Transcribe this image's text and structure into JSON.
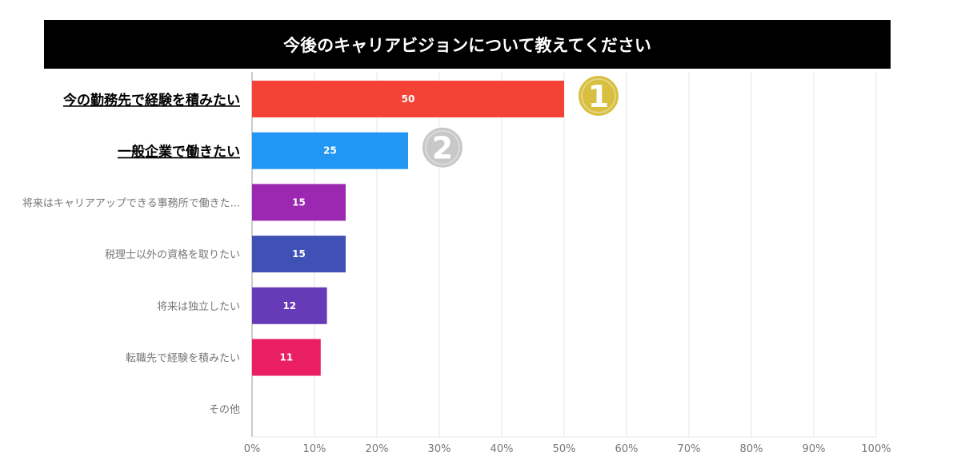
{
  "chart_data": {
    "type": "bar",
    "orientation": "horizontal",
    "title": "今後のキャリアビジョンについて教えてください",
    "categories": [
      "今の勤務先で経験を積みたい",
      "一般企業で働きたい",
      "将来はキャリアアップできる事務所で働きた...",
      "税理士以外の資格を取りたい",
      "将来は独立したい",
      "転職先で経験を積みたい",
      "その他"
    ],
    "values": [
      50,
      25,
      15,
      15,
      12,
      11,
      0
    ],
    "value_labels": [
      "50",
      "25",
      "15",
      "15",
      "12",
      "11",
      ""
    ],
    "colors": [
      "#f44336",
      "#2196f3",
      "#9c27b0",
      "#3f51b5",
      "#673ab7",
      "#e91e63",
      "#999999"
    ],
    "highlighted": [
      true,
      true,
      false,
      false,
      false,
      false,
      false
    ],
    "badges": [
      {
        "text": "1",
        "color": "#d9bf3f"
      },
      {
        "text": "2",
        "color": "#c8c8c8"
      }
    ],
    "xlim": [
      0,
      100
    ],
    "xticks": [
      "0%",
      "10%",
      "20%",
      "30%",
      "40%",
      "50%",
      "60%",
      "70%",
      "80%",
      "90%",
      "100%"
    ],
    "grid": true
  }
}
